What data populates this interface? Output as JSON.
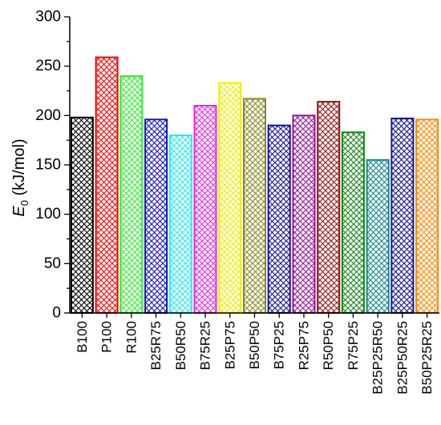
{
  "chart_data": {
    "type": "bar",
    "ylabel": {
      "symbol": "E",
      "subscript": "0",
      "unit": " (kJ/mol)"
    },
    "ylim": [
      0,
      300
    ],
    "yticks": [
      "0",
      "50",
      "100",
      "150",
      "200",
      "250",
      "300"
    ],
    "grid": false,
    "categories": [
      "B100",
      "P100",
      "R100",
      "B25R75",
      "B50R50",
      "B75R25",
      "B25P75",
      "B50P50",
      "B75P25",
      "R25P75",
      "R50P50",
      "R75P25",
      "B25P25R50",
      "B25P50R25",
      "B50P25R25"
    ],
    "values": [
      198,
      259,
      240,
      196,
      180,
      210,
      233,
      217,
      190,
      200,
      214,
      183,
      155,
      197,
      196
    ],
    "colors": [
      "#000000",
      "#ff0000",
      "#33ee33",
      "#1111cc",
      "#22eeee",
      "#ee22ee",
      "#eeee00",
      "#888822",
      "#111199",
      "#991199",
      "#991111",
      "#118811",
      "#118888",
      "#111199",
      "#ff8800"
    ]
  }
}
